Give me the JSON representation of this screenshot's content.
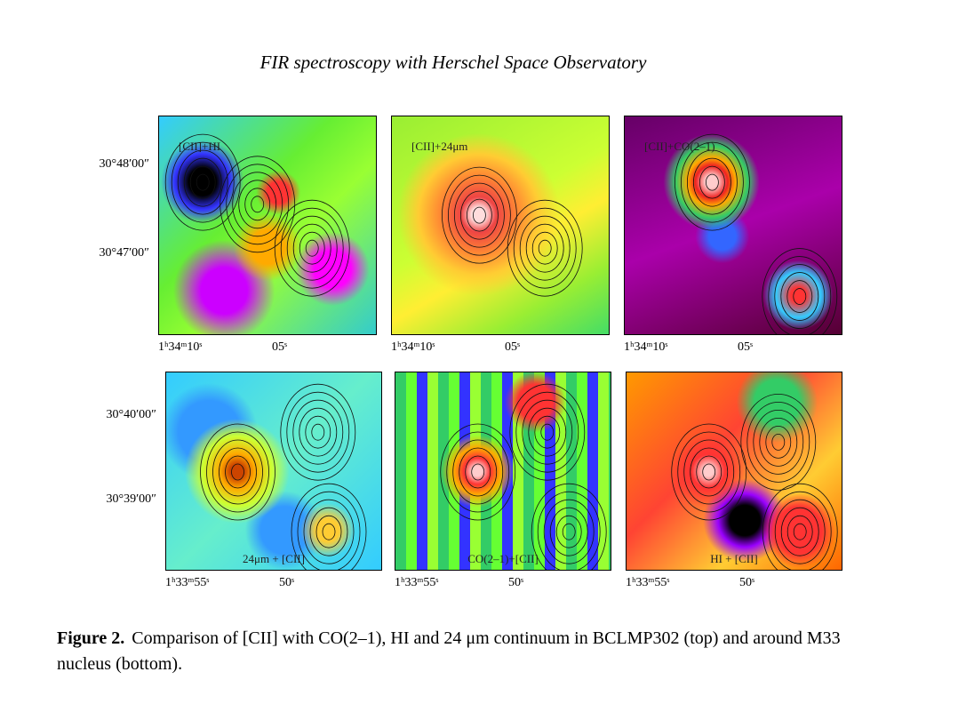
{
  "header": {
    "title": "FIR spectroscopy with Herschel Space Observatory"
  },
  "figure": {
    "rows": [
      {
        "y_labels": [
          "30°48′00″",
          "30°47′00″"
        ],
        "panels": [
          {
            "label": "[CII]+HI",
            "x_labels": [
              "1ʰ34ᵐ10ˢ",
              "05ˢ"
            ]
          },
          {
            "label": "[CII]+24μm",
            "x_labels": [
              "1ʰ34ᵐ10ˢ",
              "05ˢ"
            ]
          },
          {
            "label": "[CII]+CO(2–1)",
            "x_labels": [
              "1ʰ34ᵐ10ˢ",
              "05ˢ"
            ]
          }
        ]
      },
      {
        "y_labels": [
          "30°40′00″",
          "30°39′00″"
        ],
        "panels": [
          {
            "label": "24μm + [CII]",
            "x_labels": [
              "1ʰ33ᵐ55ˢ",
              "50ˢ"
            ]
          },
          {
            "label": "CO(2–1)+[CII]",
            "x_labels": [
              "1ʰ33ᵐ55ˢ",
              "50ˢ"
            ]
          },
          {
            "label": "HI + [CII]",
            "x_labels": [
              "1ʰ33ᵐ55ˢ",
              "50ˢ"
            ]
          }
        ]
      }
    ]
  },
  "caption": {
    "label": "Figure 2.",
    "text": "Comparison of [CII] with CO(2–1), HI and 24 μm continuum in BCLMP302 (top) and around M33 nucleus (bottom)."
  }
}
